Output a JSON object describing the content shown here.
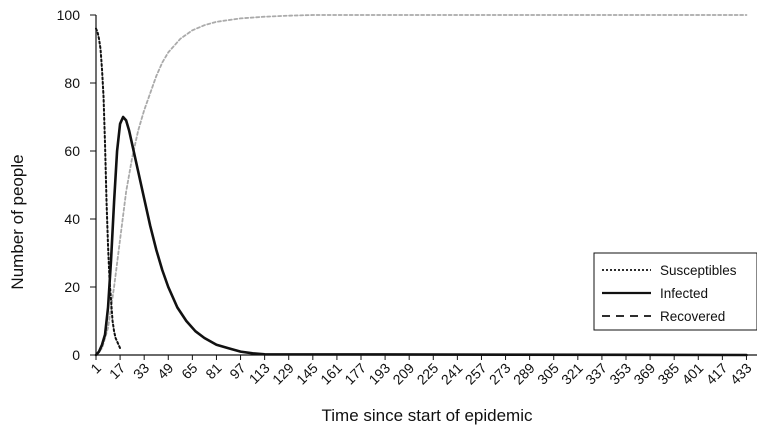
{
  "chart_data": {
    "type": "line",
    "title": "",
    "xlabel": "Time since start of epidemic",
    "ylabel": "Number of people",
    "xlim": [
      1,
      440
    ],
    "ylim": [
      0,
      100
    ],
    "x_ticks": [
      1,
      17,
      33,
      49,
      65,
      81,
      97,
      113,
      129,
      145,
      161,
      177,
      193,
      209,
      225,
      241,
      257,
      273,
      289,
      305,
      321,
      337,
      353,
      369,
      385,
      401,
      417,
      433
    ],
    "y_ticks": [
      0,
      20,
      40,
      60,
      80,
      100
    ],
    "grid": false,
    "legend_position": "bottom-right",
    "series": [
      {
        "name": "Susceptibles",
        "style": "dotted",
        "color": "#111111",
        "x": [
          1,
          2,
          3,
          4,
          5,
          6,
          7,
          8,
          9,
          10,
          11,
          12,
          13,
          14,
          15,
          16,
          17,
          18
        ],
        "y": [
          96,
          95,
          93,
          90,
          84,
          76,
          62,
          45,
          32,
          22,
          16,
          10,
          7,
          5,
          4,
          3,
          2,
          2
        ]
      },
      {
        "name": "Infected",
        "style": "solid",
        "color": "#111111",
        "x": [
          1,
          3,
          5,
          7,
          9,
          11,
          13,
          15,
          17,
          19,
          21,
          23,
          25,
          29,
          33,
          37,
          41,
          45,
          49,
          55,
          61,
          67,
          73,
          81,
          89,
          97,
          105,
          113,
          433
        ],
        "y": [
          0,
          1,
          3,
          6,
          14,
          28,
          45,
          60,
          68,
          70,
          69,
          66,
          62,
          54,
          46,
          38,
          31,
          25,
          20,
          14,
          10,
          7,
          5,
          3,
          2,
          1,
          0.5,
          0.2,
          0
        ]
      },
      {
        "name": "Recovered",
        "style": "dashed",
        "color": "#aaaaaa",
        "x": [
          1,
          5,
          9,
          13,
          17,
          21,
          25,
          29,
          33,
          37,
          41,
          45,
          49,
          57,
          65,
          73,
          81,
          89,
          97,
          113,
          129,
          145,
          161,
          433
        ],
        "y": [
          0,
          2,
          8,
          20,
          34,
          48,
          58,
          66,
          72,
          77,
          82,
          86,
          89,
          93,
          95.5,
          97,
          98,
          98.5,
          99,
          99.5,
          99.8,
          100,
          100,
          100
        ]
      }
    ]
  }
}
